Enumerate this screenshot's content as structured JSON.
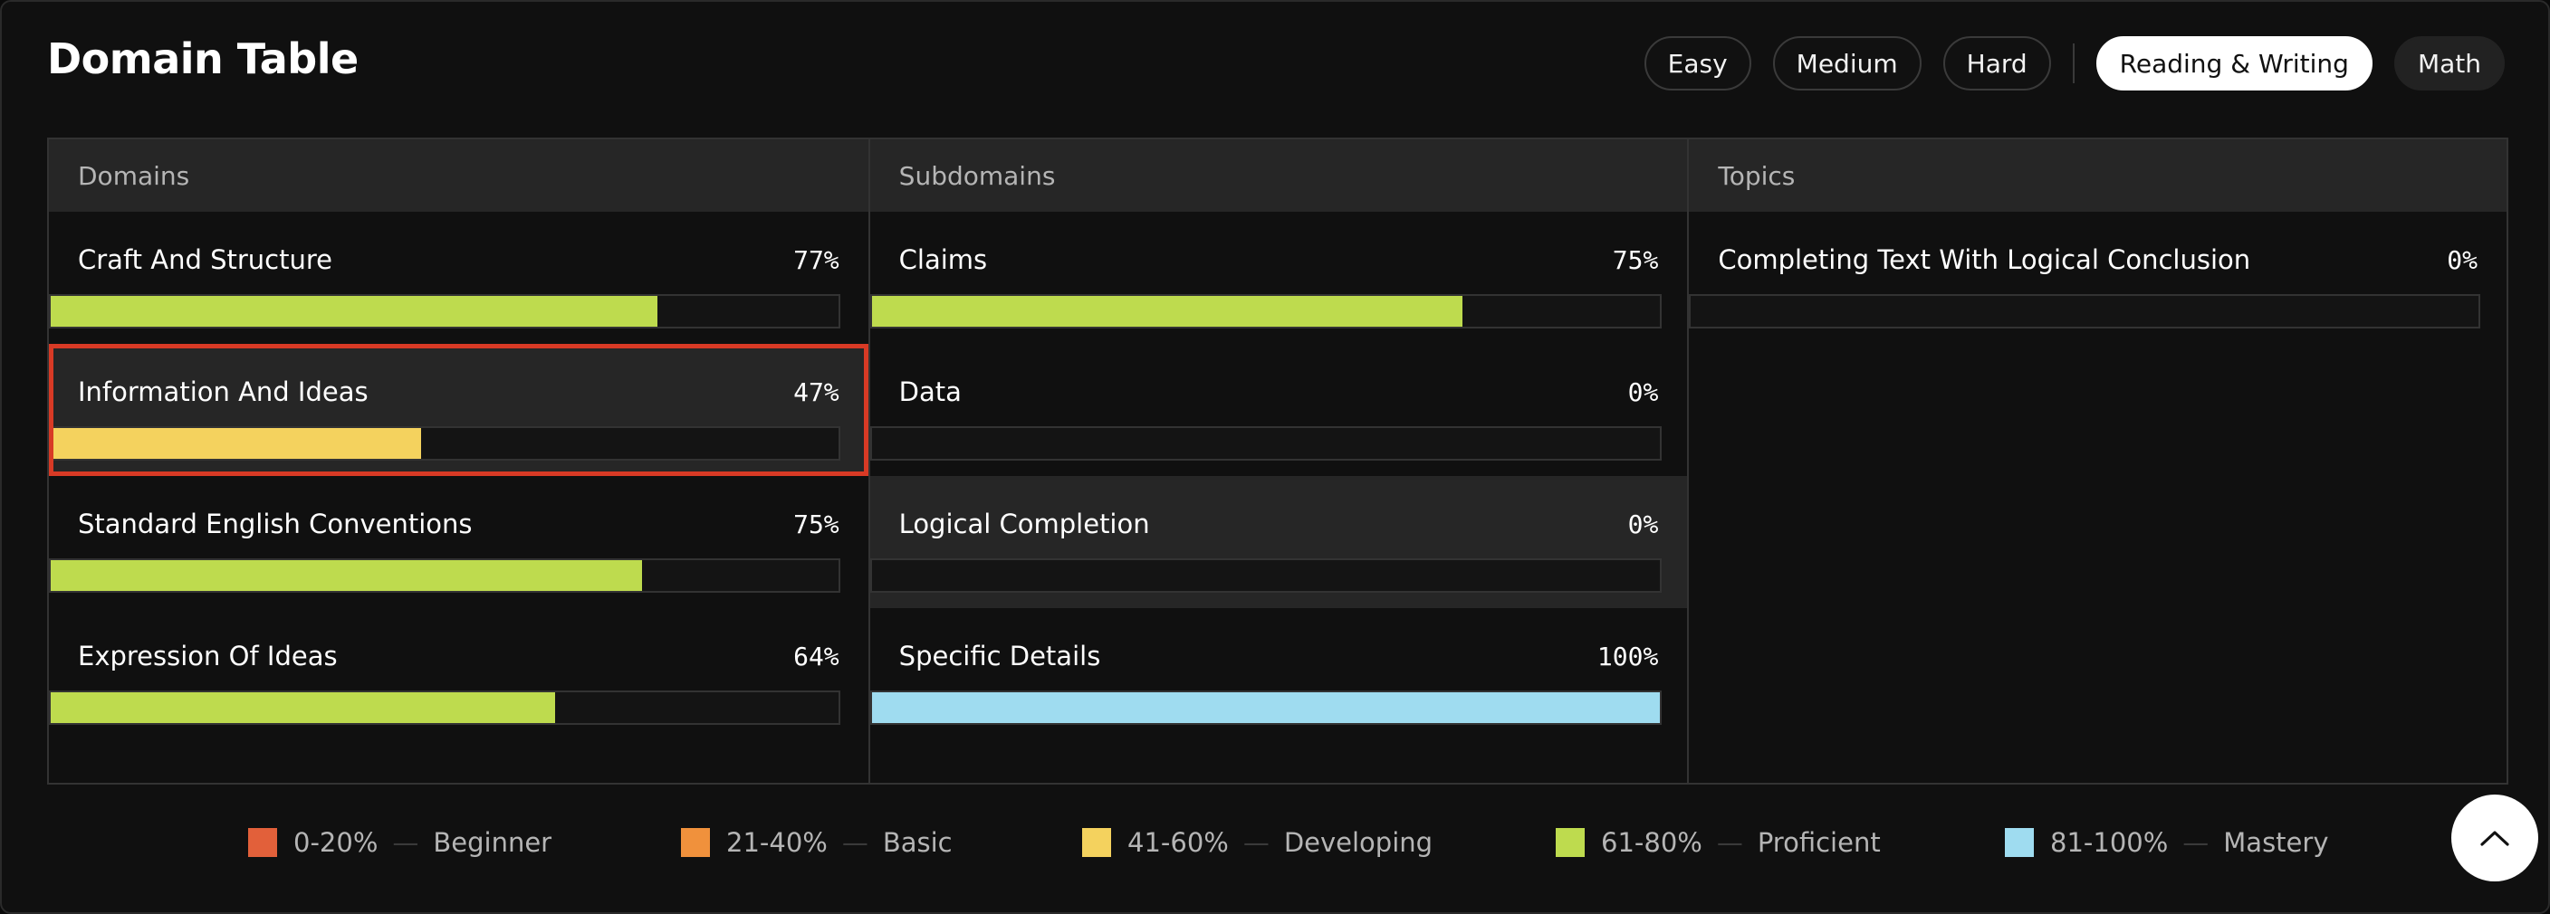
{
  "header": {
    "title": "Domain Table"
  },
  "filters": {
    "easy": "Easy",
    "medium": "Medium",
    "hard": "Hard",
    "reading_writing": "Reading & Writing",
    "math": "Math",
    "active": "Reading & Writing"
  },
  "columns": {
    "domains": {
      "header": "Domains",
      "rows": [
        {
          "name": "Craft And Structure",
          "percent": "77%",
          "value": 0.77,
          "color": "#bedb4e",
          "level": "Proficient"
        },
        {
          "name": "Information And Ideas",
          "percent": "47%",
          "value": 0.47,
          "color": "#f4d25e",
          "level": "Developing",
          "selected": true
        },
        {
          "name": "Standard English Conventions",
          "percent": "75%",
          "value": 0.75,
          "color": "#bedb4e",
          "level": "Proficient"
        },
        {
          "name": "Expression Of Ideas",
          "percent": "64%",
          "value": 0.64,
          "color": "#bedb4e",
          "level": "Proficient"
        }
      ]
    },
    "subdomains": {
      "header": "Subdomains",
      "rows": [
        {
          "name": "Claims",
          "percent": "75%",
          "value": 0.75,
          "color": "#bedb4e"
        },
        {
          "name": "Data",
          "percent": "0%",
          "value": 0,
          "color": "#bedb4e"
        },
        {
          "name": "Logical Completion",
          "percent": "0%",
          "value": 0,
          "color": "#bedb4e",
          "highlighted": true
        },
        {
          "name": "Specific Details",
          "percent": "100%",
          "value": 1.0,
          "color": "#9fdcf0"
        }
      ]
    },
    "topics": {
      "header": "Topics",
      "rows": [
        {
          "name": "Completing Text With Logical Conclusion",
          "percent": "0%",
          "value": 0,
          "color": "#bedb4e"
        }
      ]
    }
  },
  "legend": [
    {
      "range": "0-20%",
      "label": "Beginner",
      "color": "#e2603a"
    },
    {
      "range": "21-40%",
      "label": "Basic",
      "color": "#f0913c"
    },
    {
      "range": "41-60%",
      "label": "Developing",
      "color": "#f4d25e"
    },
    {
      "range": "61-80%",
      "label": "Proficient",
      "color": "#bedb4e"
    },
    {
      "range": "81-100%",
      "label": "Mastery",
      "color": "#9fdcf0"
    }
  ],
  "icons": {
    "scroll_top": "chevron-up-icon"
  }
}
